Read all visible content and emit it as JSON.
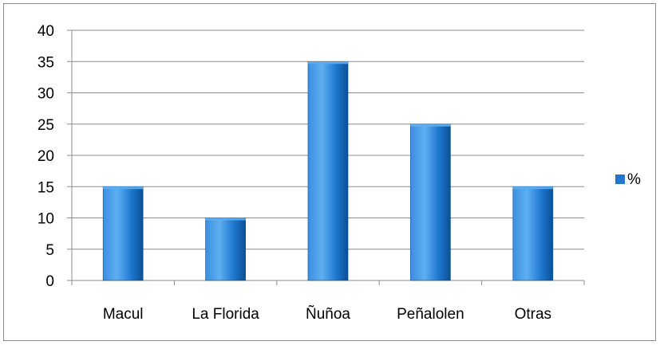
{
  "chart_data": {
    "type": "bar",
    "categories": [
      "Macul",
      "La Florida",
      "Ñuñoa",
      "Peñalolen",
      "Otras"
    ],
    "series": [
      {
        "name": "%",
        "values": [
          15,
          10,
          35,
          25,
          15
        ],
        "color": "#1F78D1"
      }
    ],
    "ylim": [
      0,
      40
    ],
    "yticks": [
      0,
      5,
      10,
      15,
      20,
      25,
      30,
      35,
      40
    ],
    "grid": true,
    "legend": "right"
  },
  "colors": {
    "bar_light": "#5FAEF0",
    "bar_mid": "#1F78D1",
    "bar_dark": "#0B4F95",
    "gridline": "#8c8c8c"
  }
}
